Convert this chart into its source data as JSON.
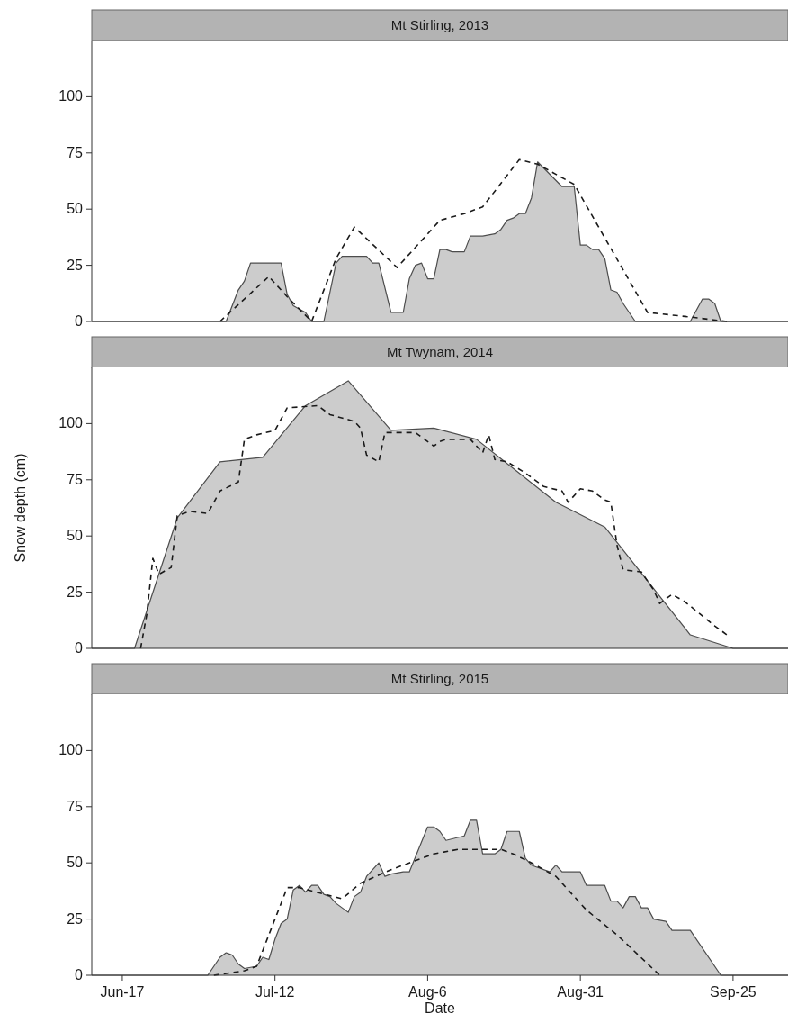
{
  "chart_data": [
    {
      "type": "area",
      "title": "Mt Stirling, 2013",
      "xlim": [
        "--06-12",
        "--10-04"
      ],
      "ylim": [
        0,
        125
      ],
      "yticks": [
        0,
        25,
        50,
        75,
        100
      ],
      "tick_labels": "y",
      "series": [
        {
          "type": "area",
          "color": "#cccccc",
          "x": [
            "--06-12",
            "--07-04",
            "--07-06",
            "--07-07",
            "--07-08",
            "--07-13",
            "--07-14",
            "--07-15",
            "--07-17",
            "--07-18",
            "--07-20",
            "--07-22",
            "--07-23",
            "--07-27",
            "--07-28",
            "--07-29",
            "--07-31",
            "--08-02",
            "--08-03",
            "--08-04",
            "--08-05",
            "--08-06",
            "--08-07",
            "--08-08",
            "--08-09",
            "--08-10",
            "--08-12",
            "--08-13",
            "--08-15",
            "--08-17",
            "--08-18",
            "--08-19",
            "--08-20",
            "--08-21",
            "--08-22",
            "--08-23",
            "--08-24",
            "--08-28",
            "--08-30",
            "--08-31",
            "--09-01",
            "--09-02",
            "--09-03",
            "--09-04",
            "--09-05",
            "--09-06",
            "--09-07",
            "--09-09",
            "--09-18",
            "--09-20",
            "--09-21",
            "--09-22",
            "--09-23",
            "--10-04"
          ],
          "values": [
            0,
            0,
            14,
            18,
            26,
            26,
            12,
            7,
            4,
            0,
            0,
            26,
            29,
            29,
            26,
            26,
            4,
            4,
            19,
            25,
            26,
            19,
            19,
            32,
            32,
            31,
            31,
            38,
            38,
            39,
            41,
            45,
            46,
            48,
            48,
            55,
            71,
            60,
            60,
            34,
            34,
            32,
            32,
            28,
            14,
            13,
            8,
            0,
            0,
            10,
            10,
            8,
            0,
            0
          ]
        },
        {
          "type": "line",
          "color": "#1a1a1a",
          "line_style": "dashed",
          "x": [
            "--07-03",
            "--07-05",
            "--07-11",
            "--07-14",
            "--07-18",
            "--07-22",
            "--07-25",
            "--08-01",
            "--08-08",
            "--08-12",
            "--08-15",
            "--08-21",
            "--08-24",
            "--08-30",
            "--09-11",
            "--09-18",
            "--09-24"
          ],
          "values": [
            0,
            5,
            20,
            11,
            0,
            28,
            42,
            24,
            45,
            48,
            51,
            72,
            70,
            61,
            4,
            2,
            0
          ]
        }
      ]
    },
    {
      "type": "area",
      "title": "Mt Twynam, 2014",
      "ylabel": "Snow depth (cm)",
      "xlim": [
        "--06-12",
        "--10-04"
      ],
      "ylim": [
        0,
        125
      ],
      "yticks": [
        0,
        25,
        50,
        75,
        100
      ],
      "tick_labels": "y",
      "series": [
        {
          "type": "area",
          "color": "#cccccc",
          "x": [
            "--06-12",
            "--06-19",
            "--06-26",
            "--07-03",
            "--07-10",
            "--07-17",
            "--07-24",
            "--07-31",
            "--08-07",
            "--08-14",
            "--08-27",
            "--09-04",
            "--09-18",
            "--09-25",
            "--10-04"
          ],
          "values": [
            0,
            0,
            58,
            83,
            85,
            108,
            119,
            97,
            98,
            93,
            65,
            54,
            6,
            0,
            0
          ]
        },
        {
          "type": "line",
          "color": "#1a1a1a",
          "line_style": "dashed",
          "x": [
            "--06-20",
            "--06-21",
            "--06-22",
            "--06-23",
            "--06-25",
            "--06-26",
            "--06-28",
            "--07-01",
            "--07-03",
            "--07-06",
            "--07-07",
            "--07-09",
            "--07-12",
            "--07-14",
            "--07-19",
            "--07-21",
            "--07-25",
            "--07-26",
            "--07-27",
            "--07-29",
            "--07-30",
            "--08-04",
            "--08-07",
            "--08-08",
            "--08-09",
            "--08-13",
            "--08-15",
            "--08-16",
            "--08-17",
            "--08-19",
            "--08-22",
            "--08-25",
            "--08-28",
            "--08-29",
            "--08-31",
            "--09-02",
            "--09-04",
            "--09-05",
            "--09-06",
            "--09-07",
            "--09-10",
            "--09-12",
            "--09-13",
            "--09-15",
            "--09-17",
            "--09-22",
            "--09-24"
          ],
          "values": [
            0,
            15,
            40,
            33,
            36,
            59,
            61,
            60,
            70,
            74,
            93,
            95,
            97,
            107,
            108,
            104,
            101,
            98,
            86,
            83,
            96,
            96,
            90,
            92,
            93,
            93,
            87,
            95,
            84,
            83,
            78,
            72,
            70,
            65,
            71,
            70,
            66,
            65,
            46,
            35,
            34,
            26,
            20,
            24,
            21,
            10,
            6
          ]
        }
      ]
    },
    {
      "type": "area",
      "title": "Mt Stirling, 2015",
      "xlabel": "Date",
      "xlim": [
        "--06-12",
        "--10-04"
      ],
      "xticks": [
        {
          "value": "--06-17",
          "label": "Jun-17"
        },
        {
          "value": "--07-12",
          "label": "Jul-12"
        },
        {
          "value": "--08-06",
          "label": "Aug-6"
        },
        {
          "value": "--08-31",
          "label": "Aug-31"
        },
        {
          "value": "--09-25",
          "label": "Sep-25"
        }
      ],
      "ylim": [
        0,
        125
      ],
      "yticks": [
        0,
        25,
        50,
        75,
        100
      ],
      "series": [
        {
          "type": "area",
          "color": "#cccccc",
          "x": [
            "--06-12",
            "--07-01",
            "--07-03",
            "--07-04",
            "--07-05",
            "--07-06",
            "--07-07",
            "--07-09",
            "--07-10",
            "--07-11",
            "--07-12",
            "--07-13",
            "--07-14",
            "--07-15",
            "--07-16",
            "--07-17",
            "--07-18",
            "--07-19",
            "--07-20",
            "--07-21",
            "--07-22",
            "--07-24",
            "--07-25",
            "--07-26",
            "--07-27",
            "--07-29",
            "--07-30",
            "--07-31",
            "--08-02",
            "--08-03",
            "--08-06",
            "--08-07",
            "--08-08",
            "--08-09",
            "--08-12",
            "--08-13",
            "--08-14",
            "--08-15",
            "--08-17",
            "--08-18",
            "--08-19",
            "--08-21",
            "--08-22",
            "--08-23",
            "--08-24",
            "--08-26",
            "--08-27",
            "--08-28",
            "--08-31",
            "--09-01",
            "--09-04",
            "--09-05",
            "--09-06",
            "--09-07",
            "--09-08",
            "--09-09",
            "--09-10",
            "--09-11",
            "--09-12",
            "--09-14",
            "--09-15",
            "--09-18",
            "--09-23",
            "--10-04"
          ],
          "values": [
            0,
            0,
            8,
            10,
            9,
            5,
            3,
            4,
            8,
            7,
            16,
            23,
            25,
            38,
            40,
            37,
            40,
            40,
            36,
            35,
            32,
            28,
            35,
            37,
            44,
            50,
            44,
            45,
            46,
            46,
            66,
            66,
            64,
            60,
            62,
            69,
            69,
            54,
            54,
            56,
            64,
            64,
            52,
            49,
            48,
            46,
            49,
            46,
            46,
            40,
            40,
            33,
            33,
            30,
            35,
            35,
            30,
            30,
            25,
            24,
            20,
            20,
            0,
            0
          ]
        },
        {
          "type": "line",
          "color": "#1a1a1a",
          "line_style": "dashed",
          "x": [
            "--07-02",
            "--07-07",
            "--07-09",
            "--07-11",
            "--07-14",
            "--07-16",
            "--07-23",
            "--07-26",
            "--07-31",
            "--08-03",
            "--08-07",
            "--08-11",
            "--08-18",
            "--08-20",
            "--08-23",
            "--08-27",
            "--09-01",
            "--09-06",
            "--09-13"
          ],
          "values": [
            0,
            2,
            4,
            18,
            39,
            39,
            34,
            41,
            47,
            50,
            54,
            56,
            56,
            54,
            50,
            44,
            29,
            18,
            0
          ]
        }
      ]
    }
  ]
}
